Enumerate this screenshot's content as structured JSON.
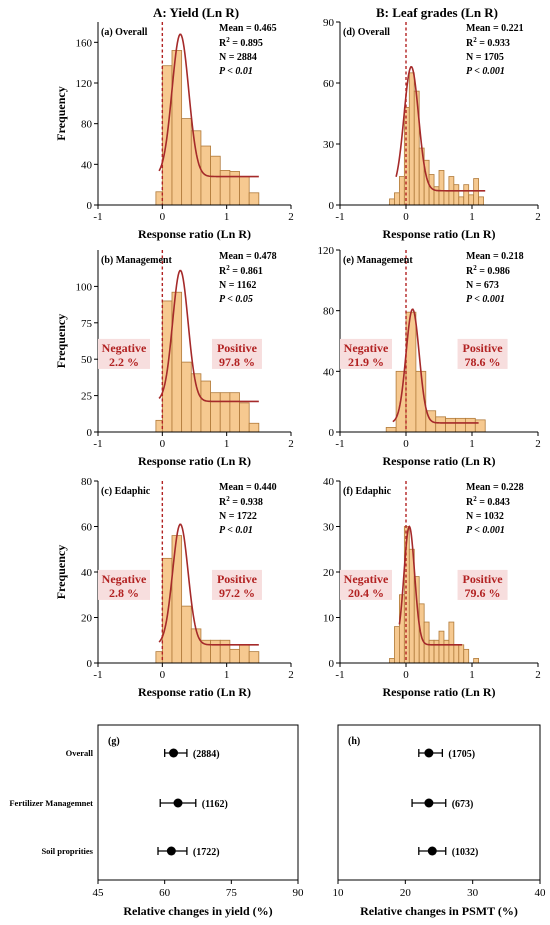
{
  "colors": {
    "bar_fill": "#f6c990",
    "fit_line": "#a52a2a",
    "zero_line": "#b22222",
    "region_text": "#b22222",
    "region_bg": "#f7dede"
  },
  "columns": {
    "a_title": "A: Yield (Ln R)",
    "b_title": "B: Leaf grades (Ln R)"
  },
  "chart_data": [
    {
      "id": "a",
      "type": "bar",
      "panel_label": "(a) Overall",
      "xlabel": "Response ratio (Ln R)",
      "ylabel": "Frequency",
      "xlim": [
        -1,
        2
      ],
      "ylim": [
        0,
        180
      ],
      "xticks": [
        -1,
        0,
        1,
        2
      ],
      "yticks": [
        0,
        40,
        80,
        120,
        160
      ],
      "bin_width": 0.15,
      "bin_starts": [
        -0.1,
        0.0,
        0.15,
        0.3,
        0.45,
        0.6,
        0.75,
        0.9,
        1.05,
        1.2,
        1.35
      ],
      "values": [
        13,
        137,
        152,
        85,
        73,
        58,
        48,
        34,
        33,
        28,
        12
      ],
      "fit": {
        "mu": 0.28,
        "sigma": 0.13,
        "amp": 140,
        "base": 28,
        "xmin": -0.05,
        "xmax": 1.5
      },
      "stats": {
        "mean": "Mean = 0.465",
        "r2_value": " = 0.895",
        "n": "N = 2884",
        "p": "P < 0.01"
      },
      "negative": null,
      "positive": null
    },
    {
      "id": "d",
      "type": "bar",
      "panel_label": "(d) Overall",
      "xlabel": "Response ratio (Ln R)",
      "ylabel": "",
      "xlim": [
        -1,
        2
      ],
      "ylim": [
        0,
        90
      ],
      "xticks": [
        -1,
        0,
        1,
        2
      ],
      "yticks": [
        0,
        30,
        60,
        90
      ],
      "bin_width": 0.075,
      "bin_starts": [
        -0.25,
        -0.175,
        -0.1,
        -0.025,
        0.05,
        0.125,
        0.2,
        0.275,
        0.35,
        0.425,
        0.5,
        0.575,
        0.65,
        0.725,
        0.8,
        0.875,
        0.95,
        1.025,
        1.1
      ],
      "values": [
        3,
        6,
        14,
        48,
        65,
        56,
        28,
        22,
        15,
        9,
        17,
        7,
        14,
        10,
        4,
        10,
        5,
        13,
        4
      ],
      "fit": {
        "mu": 0.08,
        "sigma": 0.11,
        "amp": 61,
        "base": 7,
        "xmin": -0.15,
        "xmax": 1.2
      },
      "stats": {
        "mean": "Mean = 0.221",
        "r2_value": " = 0.933",
        "n": "N = 1705",
        "p": "P < 0.001"
      },
      "negative": null,
      "positive": null
    },
    {
      "id": "b",
      "type": "bar",
      "panel_label": "(b) Management",
      "xlabel": "Response ratio (Ln R)",
      "ylabel": "Frequency",
      "xlim": [
        -1,
        2
      ],
      "ylim": [
        0,
        125
      ],
      "xticks": [
        -1,
        0,
        1,
        2
      ],
      "yticks": [
        0,
        25,
        50,
        75,
        100
      ],
      "bin_width": 0.15,
      "bin_starts": [
        -0.1,
        0.0,
        0.15,
        0.3,
        0.45,
        0.6,
        0.75,
        0.9,
        1.05,
        1.2,
        1.35
      ],
      "values": [
        8,
        90,
        96,
        48,
        40,
        35,
        27,
        27,
        27,
        20,
        6
      ],
      "fit": {
        "mu": 0.28,
        "sigma": 0.12,
        "amp": 90,
        "base": 21,
        "xmin": -0.05,
        "xmax": 1.5
      },
      "stats": {
        "mean": "Mean = 0.478",
        "r2_value": " = 0.861",
        "n": "N = 1162",
        "p": "P < 0.05"
      },
      "negative": {
        "title": "Negative",
        "value": "2.2 %"
      },
      "positive": {
        "title": "Positive",
        "value": "97.8 %"
      }
    },
    {
      "id": "e",
      "type": "bar",
      "panel_label": "(e) Management",
      "xlabel": "Response ratio (Ln R)",
      "ylabel": "",
      "xlim": [
        -1,
        2
      ],
      "ylim": [
        0,
        120
      ],
      "xticks": [
        -1,
        0,
        1,
        2
      ],
      "yticks": [
        0,
        40,
        80,
        120
      ],
      "bin_width": 0.15,
      "bin_starts": [
        -0.3,
        -0.15,
        0.0,
        0.15,
        0.3,
        0.45,
        0.6,
        0.75,
        0.9,
        1.05
      ],
      "values": [
        3,
        40,
        79,
        40,
        14,
        10,
        9,
        9,
        9,
        8
      ],
      "fit": {
        "mu": 0.1,
        "sigma": 0.1,
        "amp": 75,
        "base": 6,
        "xmin": -0.2,
        "xmax": 1.1
      },
      "stats": {
        "mean": "Mean = 0.218",
        "r2_value": " = 0.986",
        "n": "N = 673",
        "p": "P < 0.001"
      },
      "negative": {
        "title": "Negative",
        "value": "21.9 %"
      },
      "positive": {
        "title": "Positive",
        "value": "78.6 %"
      }
    },
    {
      "id": "c",
      "type": "bar",
      "panel_label": "(c) Edaphic",
      "xlabel": "Response ratio (Ln R)",
      "ylabel": "Frequency",
      "xlim": [
        -1,
        2
      ],
      "ylim": [
        0,
        80
      ],
      "xticks": [
        -1,
        0,
        1,
        2
      ],
      "yticks": [
        0,
        20,
        40,
        60,
        80
      ],
      "bin_width": 0.15,
      "bin_starts": [
        -0.1,
        0.0,
        0.15,
        0.3,
        0.45,
        0.6,
        0.75,
        0.9,
        1.05,
        1.2,
        1.35
      ],
      "values": [
        5,
        46,
        56,
        25,
        15,
        10,
        10,
        10,
        6,
        8,
        5
      ],
      "fit": {
        "mu": 0.28,
        "sigma": 0.12,
        "amp": 53,
        "base": 8,
        "xmin": -0.05,
        "xmax": 1.5
      },
      "stats": {
        "mean": "Mean = 0.440",
        "r2_value": " = 0.938",
        "n": "N = 1722",
        "p": "P < 0.01"
      },
      "negative": {
        "title": "Negative",
        "value": "2.8 %"
      },
      "positive": {
        "title": "Positive",
        "value": "97.2 %"
      }
    },
    {
      "id": "f",
      "type": "bar",
      "panel_label": "(f) Edaphic",
      "xlabel": "Response ratio (Ln R)",
      "ylabel": "",
      "xlim": [
        -1,
        2
      ],
      "ylim": [
        0,
        40
      ],
      "xticks": [
        -1,
        0,
        1,
        2
      ],
      "yticks": [
        0,
        10,
        20,
        30,
        40
      ],
      "bin_width": 0.075,
      "bin_starts": [
        -0.25,
        -0.175,
        -0.1,
        -0.025,
        0.05,
        0.125,
        0.2,
        0.275,
        0.35,
        0.425,
        0.5,
        0.575,
        0.65,
        0.725,
        0.8,
        0.875,
        0.95,
        1.025
      ],
      "values": [
        1,
        8,
        15,
        30,
        25,
        19,
        13,
        9,
        5,
        5,
        7,
        5,
        9,
        4,
        4,
        3,
        0,
        1
      ],
      "fit": {
        "mu": 0.05,
        "sigma": 0.08,
        "amp": 26,
        "base": 4,
        "xmin": -0.1,
        "xmax": 0.85
      },
      "stats": {
        "mean": "Mean = 0.228",
        "r2_value": " = 0.843",
        "n": "N = 1032",
        "p": "P < 0.001"
      },
      "negative": {
        "title": "Negative",
        "value": "20.4 %"
      },
      "positive": {
        "title": "Positive",
        "value": "79.6 %"
      }
    },
    {
      "id": "g",
      "type": "scatter",
      "panel_label": "(g)",
      "xlabel": "Relative changes in yield (%)",
      "xlim": [
        45,
        90
      ],
      "xticks": [
        45,
        60,
        75,
        90
      ],
      "categories": [
        "Overall",
        "Fertilizer Managemnet",
        "Soil proprities"
      ],
      "points": [
        {
          "mean": 62,
          "low": 60,
          "high": 65,
          "n": "(2884)"
        },
        {
          "mean": 63,
          "low": 59,
          "high": 67,
          "n": "(1162)"
        },
        {
          "mean": 61.5,
          "low": 58.5,
          "high": 65,
          "n": "(1722)"
        }
      ]
    },
    {
      "id": "h",
      "type": "scatter",
      "panel_label": "(h)",
      "xlabel": "Relative changes in PSMT (%)",
      "xlim": [
        10,
        40
      ],
      "xticks": [
        10,
        20,
        30,
        40
      ],
      "categories": [
        "Overall",
        "Fertilizer Managemnet",
        "Soil proprities"
      ],
      "points": [
        {
          "mean": 23.5,
          "low": 22,
          "high": 25.5,
          "n": "(1705)"
        },
        {
          "mean": 23.5,
          "low": 21,
          "high": 26,
          "n": "(673)"
        },
        {
          "mean": 24,
          "low": 22,
          "high": 26,
          "n": "(1032)"
        }
      ]
    }
  ]
}
